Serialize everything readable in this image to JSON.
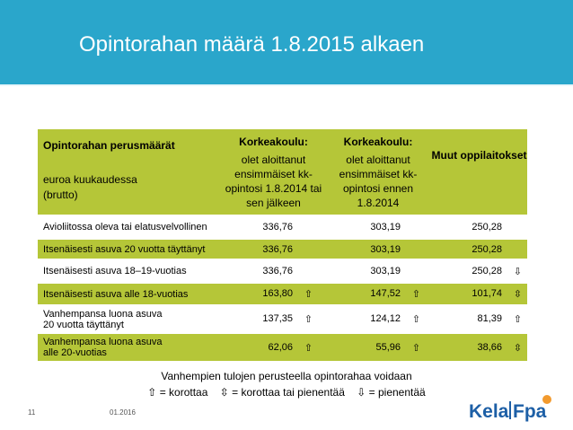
{
  "title": "Opintorahan määrä 1.8.2015 alkaen",
  "colors": {
    "header": "#2aa6cb",
    "table_green": "#b5c638",
    "logo_blue": "#1d5fa6",
    "logo_orange": "#f29a2e"
  },
  "table": {
    "header": {
      "col1_bold": "Opintorahan perusmäärät",
      "col1_line1": "euroa kuukaudessa",
      "col1_line2": "(brutto)",
      "col2_bold": "Korkeakoulu:",
      "col2_text": "olet aloittanut ensimmäiset kk-opintosi 1.8.2014 tai sen jälkeen",
      "col3_bold": "Korkeakoulu:",
      "col3_text": "olet aloittanut ensimmäiset kk-opintosi ennen 1.8.2014",
      "col4_text": "Muut oppilaitokset"
    },
    "rows": [
      {
        "label": "Avioliitossa oleva tai elatusvelvollinen",
        "v1": "336,76",
        "a1": "",
        "v2": "303,19",
        "a2": "",
        "v3": "250,28",
        "a3": ""
      },
      {
        "label": "Itsenäisesti asuva 20 vuotta täyttänyt",
        "v1": "336,76",
        "a1": "",
        "v2": "303,19",
        "a2": "",
        "v3": "250,28",
        "a3": ""
      },
      {
        "label": "Itsenäisesti asuva 18–19-vuotias",
        "v1": "336,76",
        "a1": "",
        "v2": "303,19",
        "a2": "",
        "v3": "250,28",
        "a3": "⇩"
      },
      {
        "label": "Itsenäisesti asuva alle 18-vuotias",
        "v1": "163,80",
        "a1": "⇧",
        "v2": "147,52",
        "a2": "⇧",
        "v3": "101,74",
        "a3": "⇳"
      },
      {
        "label": "Vanhempansa luona asuva 20 vuotta täyttänyt",
        "v1": "137,35",
        "a1": "⇧",
        "v2": "124,12",
        "a2": "⇧",
        "v3": "81,39",
        "a3": "⇧"
      },
      {
        "label": "Vanhempansa luona asuva alle 20-vuotias",
        "v1": "62,06",
        "a1": "⇧",
        "v2": "55,96",
        "a2": "⇧",
        "v3": "38,66",
        "a3": "⇳"
      }
    ]
  },
  "legend": {
    "line1": "Vanhempien tulojen perusteella opintorahaa voidaan",
    "up_icon": "⇧",
    "up_text": "= korottaa",
    "updown_icon": "⇳",
    "updown_text": "= korottaa tai pienentää",
    "down_icon": "⇩",
    "down_text": "= pienentää"
  },
  "footer": {
    "page": "11",
    "date": "01.2016"
  },
  "logo": {
    "text_kela": "Kela",
    "text_fpa": "Fpa"
  }
}
